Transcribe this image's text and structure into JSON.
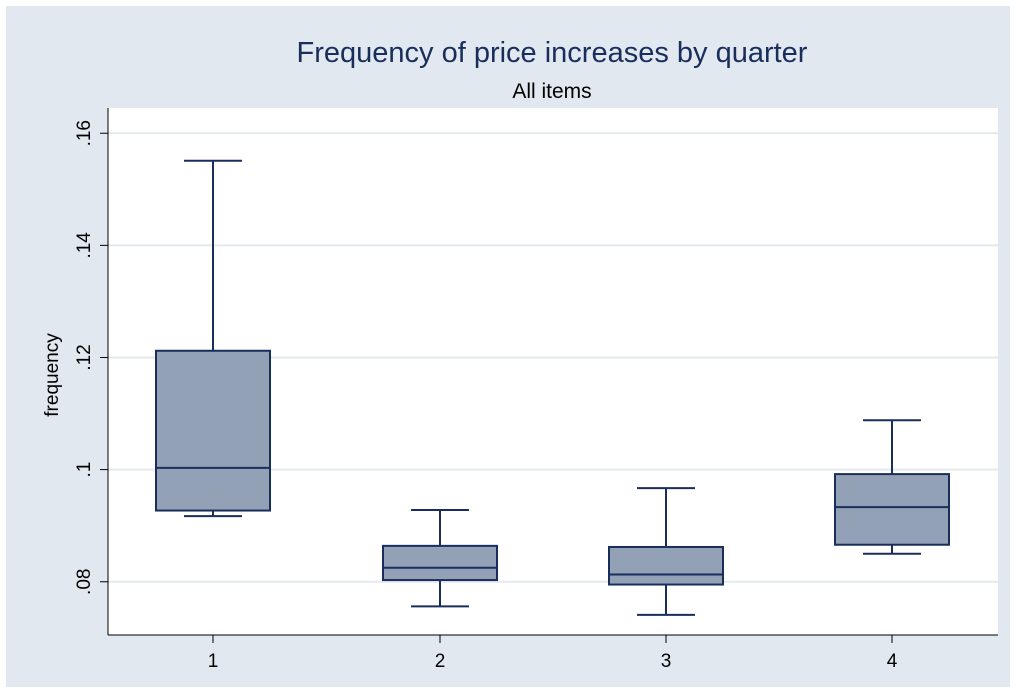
{
  "chart_data": {
    "type": "box",
    "title": "Frequency of price increases by quarter",
    "subtitle": "All items",
    "xlabel": "",
    "ylabel": "frequency",
    "ylim": [
      0.0705,
      0.1645
    ],
    "yticks": [
      0.08,
      0.1,
      0.12,
      0.14,
      0.16
    ],
    "ytick_labels": [
      ".08",
      ".1",
      ".12",
      ".14",
      ".16"
    ],
    "categories": [
      "1",
      "2",
      "3",
      "4"
    ],
    "grid": true,
    "legend": "none",
    "boxes": [
      {
        "category": "1",
        "min": 0.0917,
        "q1": 0.0927,
        "median": 0.1003,
        "q3": 0.1212,
        "max": 0.1551
      },
      {
        "category": "2",
        "min": 0.0756,
        "q1": 0.0803,
        "median": 0.0825,
        "q3": 0.0864,
        "max": 0.0928
      },
      {
        "category": "3",
        "min": 0.0741,
        "q1": 0.0795,
        "median": 0.0813,
        "q3": 0.0862,
        "max": 0.0967
      },
      {
        "category": "4",
        "min": 0.085,
        "q1": 0.0866,
        "median": 0.0933,
        "q3": 0.0992,
        "max": 0.1088
      }
    ]
  },
  "colors": {
    "outer_background": "#e1e8f0",
    "plot_background": "#ffffff",
    "grid": "#e3e9ef",
    "box_fill": "#93a1b6",
    "box_stroke": "#1a2e5c",
    "title": "#1a2e5c",
    "text": "#000000"
  }
}
